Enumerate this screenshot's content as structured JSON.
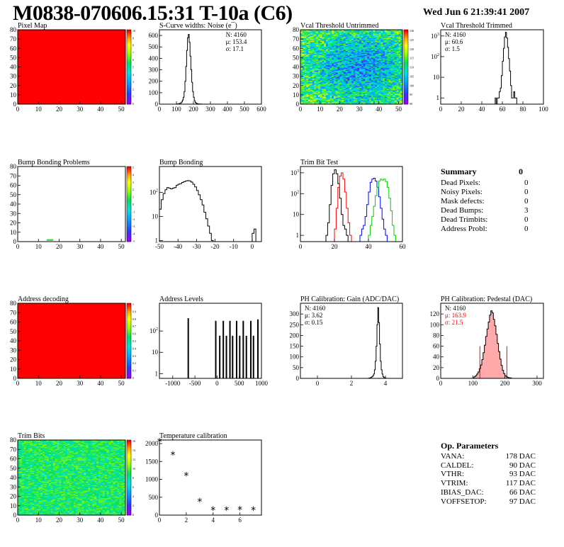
{
  "header": {
    "title": "M0838-070606.15:31 T-10a (C6)",
    "date": "Wed Jun  6 21:39:41 2007"
  },
  "summary": {
    "title": "Summary",
    "value": "0",
    "rows": [
      {
        "label": "Dead Pixels:",
        "value": "0"
      },
      {
        "label": "Noisy Pixels:",
        "value": "0"
      },
      {
        "label": "Mask defects:",
        "value": "0"
      },
      {
        "label": "Dead Bumps:",
        "value": "3"
      },
      {
        "label": "Dead Trimbits:",
        "value": "0"
      },
      {
        "label": "Address Probl:",
        "value": "0"
      }
    ]
  },
  "op_params": {
    "title": "Op. Parameters",
    "rows": [
      {
        "label": "VANA:",
        "value": "178 DAC"
      },
      {
        "label": "CALDEL:",
        "value": "90 DAC"
      },
      {
        "label": "VTHR:",
        "value": "93 DAC"
      },
      {
        "label": "VTRIM:",
        "value": "117 DAC"
      },
      {
        "label": "IBIAS_DAC:",
        "value": "66 DAC"
      },
      {
        "label": "VOFFSETOP:",
        "value": "97 DAC"
      }
    ]
  },
  "colors": {
    "dead_red": "#ff0000",
    "trim_red": "#ff0000",
    "trim_blue": "#0000ff",
    "trim_green": "#00cc00",
    "pedestal_fill": "#ff6666"
  },
  "chart_data": [
    {
      "id": "pixel-map",
      "type": "heatmap",
      "title": "Pixel Map",
      "xlim": [
        0,
        52
      ],
      "ylim": [
        0,
        80
      ],
      "xticks": [
        "0",
        "10",
        "20",
        "30",
        "40",
        "50"
      ],
      "yticks": [
        "0",
        "10",
        "20",
        "30",
        "40",
        "50",
        "60",
        "70",
        "80"
      ],
      "fill": "uniform",
      "fill_color": "#ff0000",
      "colorbar": {
        "labels": [
          "10",
          "9",
          "8",
          "7",
          "6",
          "5",
          "4",
          "3",
          "2",
          "1",
          "0"
        ]
      }
    },
    {
      "id": "scurve-widths",
      "type": "histogram",
      "title": "S-Curve widths: Noise (e¯)",
      "xlim": [
        0,
        600
      ],
      "ylim": [
        0,
        650
      ],
      "xticks": [
        "0",
        "100",
        "200",
        "300",
        "400",
        "500",
        "600"
      ],
      "yticks": [
        "0",
        "100",
        "200",
        "300",
        "400",
        "500",
        "600"
      ],
      "stats": [
        "N: 4160",
        "μ: 153.4",
        "σ: 17.1"
      ],
      "bins": {
        "x0": 100,
        "width": 5,
        "values": [
          1,
          2,
          3,
          5,
          8,
          12,
          20,
          35,
          60,
          110,
          200,
          330,
          470,
          580,
          610,
          540,
          420,
          300,
          190,
          110,
          60,
          30,
          15,
          8,
          5,
          3,
          2,
          1,
          1,
          1
        ]
      }
    },
    {
      "id": "vcal-untrimmed",
      "type": "heatmap",
      "title": "Vcal Threshold Untrimmed",
      "xlim": [
        0,
        52
      ],
      "ylim": [
        0,
        80
      ],
      "xticks": [
        "0",
        "10",
        "20",
        "30",
        "40",
        "50"
      ],
      "yticks": [
        "0",
        "10",
        "20",
        "30",
        "40",
        "50",
        "60",
        "70",
        "80"
      ],
      "fill": "noise",
      "noise_mean": 0.4,
      "noise_spread": 0.25,
      "colorbar": {
        "labels": [
          "130",
          "125",
          "120",
          "115",
          "110",
          "105",
          "100",
          "95",
          "90"
        ]
      }
    },
    {
      "id": "vcal-trimmed",
      "type": "histogram",
      "title": "Vcal Threshold Trimmed",
      "xlim": [
        0,
        100
      ],
      "ylim": [
        0.5,
        2000
      ],
      "yscale": "log",
      "xticks": [
        "0",
        "20",
        "40",
        "60",
        "80",
        "100"
      ],
      "ytick_values": [
        1,
        10,
        100,
        1000
      ],
      "stats": [
        "N: 4160",
        "μ: 60.6",
        "σ:  1.5"
      ],
      "bins": {
        "x0": 52,
        "width": 1,
        "values": [
          0,
          1,
          0,
          1,
          1,
          2,
          3,
          12,
          60,
          250,
          900,
          1500,
          800,
          280,
          80,
          20,
          4,
          1,
          1,
          2,
          1,
          1,
          0
        ]
      }
    },
    {
      "id": "bump-problems",
      "type": "heatmap",
      "title": "Bump Bonding Problems",
      "xlim": [
        0,
        52
      ],
      "ylim": [
        0,
        80
      ],
      "xticks": [
        "0",
        "10",
        "20",
        "30",
        "40",
        "50"
      ],
      "yticks": [
        "0",
        "10",
        "20",
        "30",
        "40",
        "50",
        "60",
        "70",
        "80"
      ],
      "fill": "empty",
      "points": [
        {
          "x": 14,
          "y": 1
        },
        {
          "x": 15,
          "y": 1
        },
        {
          "x": 16,
          "y": 1
        }
      ],
      "colorbar": {
        "labels": [
          "5",
          "4",
          "3",
          "2",
          "1",
          "0",
          "-1",
          "-2",
          "-3",
          "-4",
          "-5"
        ]
      }
    },
    {
      "id": "bump-bonding",
      "type": "histogram",
      "title": "Bump Bonding",
      "xlim": [
        -50,
        5
      ],
      "ylim": [
        0.9,
        1200
      ],
      "yscale": "log",
      "xticks": [
        "-50",
        "-40",
        "-30",
        "-20",
        "-10",
        "0"
      ],
      "ytick_values": [
        1,
        10,
        100
      ],
      "bins": {
        "x0": -50,
        "width": 1,
        "values": [
          20,
          50,
          90,
          130,
          160,
          150,
          140,
          150,
          160,
          200,
          220,
          230,
          260,
          280,
          300,
          310,
          300,
          270,
          220,
          170,
          120,
          80,
          50,
          30,
          15,
          8,
          4,
          2,
          1,
          0,
          0,
          0,
          0,
          0,
          0,
          0,
          0,
          0,
          0,
          0,
          0,
          0,
          0,
          0,
          0,
          0,
          0,
          0,
          0,
          0,
          2,
          3
        ]
      }
    },
    {
      "id": "trim-bit-test",
      "type": "histogram",
      "title": "Trim Bit Test",
      "xlim": [
        0,
        60
      ],
      "ylim": [
        0.5,
        2000
      ],
      "yscale": "log",
      "xticks": [
        "0",
        "20",
        "40",
        "60"
      ],
      "ytick_values": [
        1,
        10,
        100,
        1000
      ],
      "series": [
        {
          "color_key": "black",
          "x0": 15,
          "width": 1,
          "values": [
            1,
            4,
            30,
            250,
            900,
            1400,
            900,
            300,
            60,
            10,
            3,
            2,
            1
          ]
        },
        {
          "color_key": "red",
          "x0": 20,
          "width": 1,
          "values": [
            2,
            20,
            200,
            700,
            1000,
            500,
            120,
            20,
            4,
            1
          ]
        },
        {
          "color_key": "blue",
          "x0": 35,
          "width": 1,
          "values": [
            1,
            2,
            3,
            8,
            30,
            120,
            350,
            500,
            550,
            400,
            200,
            70,
            20,
            6,
            2,
            1
          ]
        },
        {
          "color_key": "green",
          "x0": 40,
          "width": 1,
          "values": [
            1,
            3,
            8,
            25,
            80,
            200,
            400,
            500,
            450,
            500,
            380,
            200,
            60,
            15,
            3,
            1
          ]
        }
      ]
    },
    {
      "id": "address-decoding",
      "type": "heatmap",
      "title": "Address decoding",
      "xlim": [
        0,
        52
      ],
      "ylim": [
        0,
        80
      ],
      "xticks": [
        "0",
        "10",
        "20",
        "30",
        "40",
        "50"
      ],
      "yticks": [
        "0",
        "10",
        "20",
        "30",
        "40",
        "50",
        "60",
        "70",
        "80"
      ],
      "fill": "uniform",
      "fill_color": "#ff0000",
      "colorbar": {
        "labels": [
          "1",
          "0.9",
          "0.8",
          "0.7",
          "0.6",
          "0.5",
          "0.4",
          "0.3",
          "0.2",
          "0.1",
          "0"
        ]
      }
    },
    {
      "id": "address-levels",
      "type": "histogram",
      "title": "Address Levels",
      "xlim": [
        -1300,
        1000
      ],
      "ylim": [
        0.6,
        2000
      ],
      "yscale": "log",
      "xticks": [
        "-1000",
        "-500",
        "0",
        "500",
        "1000"
      ],
      "ytick_values": [
        1,
        10,
        100
      ],
      "spikes": [
        {
          "x": -650,
          "v": 400
        },
        {
          "x": -30,
          "v": 300
        },
        {
          "x": 60,
          "v": 60
        },
        {
          "x": 140,
          "v": 300
        },
        {
          "x": 210,
          "v": 60
        },
        {
          "x": 290,
          "v": 300
        },
        {
          "x": 350,
          "v": 60
        },
        {
          "x": 440,
          "v": 300
        },
        {
          "x": 510,
          "v": 60
        },
        {
          "x": 590,
          "v": 300
        },
        {
          "x": 660,
          "v": 60
        },
        {
          "x": 760,
          "v": 300
        },
        {
          "x": 820,
          "v": 60
        },
        {
          "x": 920,
          "v": 350
        }
      ]
    },
    {
      "id": "ph-gain",
      "type": "histogram",
      "title": "PH Calibration: Gain (ADC/DAC)",
      "xlim": [
        -1,
        5
      ],
      "ylim": [
        0,
        350
      ],
      "xticks": [
        "0",
        "2",
        "4"
      ],
      "yticks": [
        "0",
        "50",
        "100",
        "150",
        "200",
        "250",
        "300"
      ],
      "stats": [
        "N: 4160",
        "μ: 3.62",
        "σ: 0.15"
      ],
      "bins": {
        "x0": 3.0,
        "width": 0.05,
        "values": [
          1,
          2,
          3,
          5,
          8,
          12,
          20,
          40,
          80,
          150,
          250,
          330,
          260,
          160,
          80,
          40,
          20,
          8,
          4,
          2,
          1
        ]
      }
    },
    {
      "id": "ph-pedestal",
      "type": "histogram",
      "title": "PH Calibration: Pedestal (DAC)",
      "xlim": [
        0,
        320
      ],
      "ylim": [
        0,
        140
      ],
      "xticks": [
        "0",
        "100",
        "200",
        "300"
      ],
      "yticks": [
        "0",
        "20",
        "40",
        "60",
        "80",
        "100",
        "120"
      ],
      "stats": [
        "N: 4160",
        "μ: 163.9",
        "σ: 21.5"
      ],
      "bins": {
        "x0": 100,
        "width": 4,
        "values": [
          1,
          3,
          5,
          8,
          12,
          18,
          25,
          35,
          48,
          62,
          78,
          92,
          105,
          118,
          126,
          122,
          110,
          98,
          82,
          65,
          50,
          36,
          24,
          15,
          9,
          5,
          3,
          2,
          1,
          1
        ]
      },
      "markers": [
        {
          "x": 122,
          "v": 60
        },
        {
          "x": 206,
          "v": 60
        }
      ]
    },
    {
      "id": "trim-bits",
      "type": "heatmap",
      "title": "Trim Bits",
      "xlim": [
        0,
        52
      ],
      "ylim": [
        0,
        80
      ],
      "xticks": [
        "0",
        "10",
        "20",
        "30",
        "40",
        "50"
      ],
      "yticks": [
        "0",
        "10",
        "20",
        "30",
        "40",
        "50",
        "60",
        "70",
        "80"
      ],
      "fill": "noise",
      "noise_mean": 0.55,
      "noise_spread": 0.12,
      "colorbar": {
        "labels": [
          "16",
          "14",
          "12",
          "10",
          "8",
          "6",
          "4",
          "2",
          "0"
        ]
      }
    },
    {
      "id": "temperature-calibration",
      "type": "scatter",
      "title": "Temperature calibration",
      "xlim": [
        0,
        7.6
      ],
      "ylim": [
        0,
        2100
      ],
      "xticks": [
        "0",
        "2",
        "4",
        "6"
      ],
      "yticks": [
        "0",
        "500",
        "1000",
        "1500",
        "2000"
      ],
      "x": [
        0,
        1,
        2,
        3,
        4,
        5,
        6,
        7
      ],
      "y": [
        2050,
        1680,
        1100,
        380,
        140,
        140,
        150,
        140
      ]
    }
  ]
}
